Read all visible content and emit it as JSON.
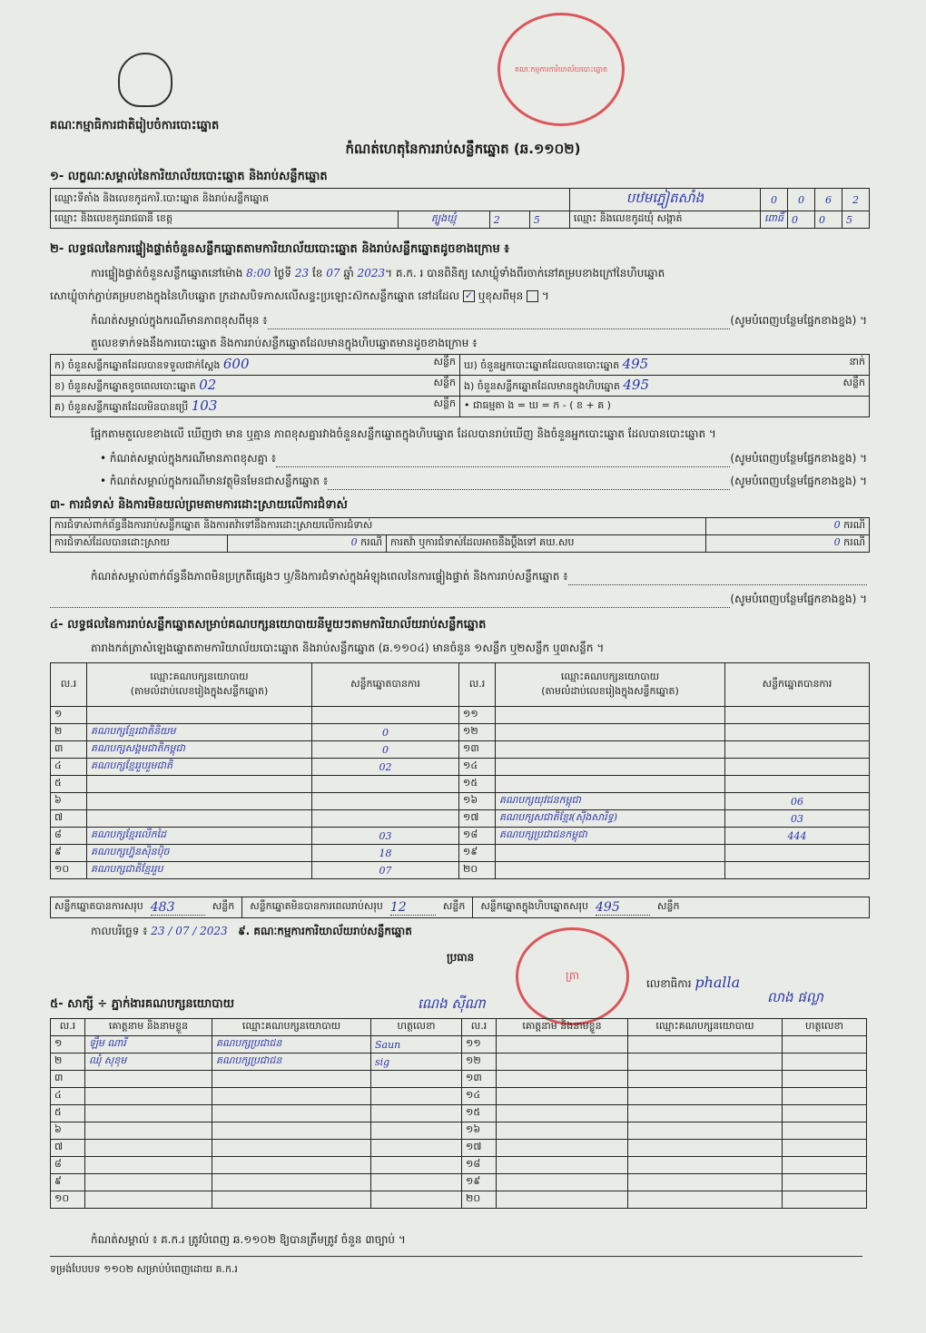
{
  "header": {
    "emblem": "royal-emblem",
    "committee": "គណៈកម្មាធិការជាតិរៀបចំការបោះឆ្នោត",
    "title": "កំណត់ហេតុនៃការរាប់សន្លឹកឆ្នោត (ឆ.១១០២)",
    "stamp_text": "គណៈកម្មការការិយាល័យបោះឆ្នោត"
  },
  "s1": {
    "heading": "១- លក្ខណៈសម្គាល់នៃការិយាល័យបោះឆ្នោត និងរាប់សន្លឹកឆ្នោត",
    "row1_label": "ឈ្មោះទីតាំង និងលេខកូដការិ.បោះឆ្នោត និងរាប់សន្លឹកឆ្នោត",
    "row1_value": "បឋមភ្នៀតសាំង",
    "row1_code": [
      "0",
      "0",
      "6",
      "2"
    ],
    "row2_label": "ឈ្មោះ និងលេខកូដរាជធានី ខេត្ត",
    "row2_value": "ត្បូងឃ្មុំ",
    "row2_code": [
      "2",
      "5"
    ],
    "row2_label2": "ឈ្មោះ និងលេខកូដឃុំ សង្កាត់",
    "row2_value2": "ពោធិ៍",
    "row2_code2": [
      "0",
      "0",
      "5"
    ]
  },
  "s2": {
    "heading": "២- លទ្ធផលនៃការផ្ទៀងផ្ទាត់ចំនួនសន្លឹកឆ្នោតតាមការិយាល័យបោះឆ្នោត និងរាប់សន្លឹកឆ្នោតដូចខាងក្រោម ៖",
    "p1a": "ការផ្ទៀងផ្ទាត់ចំនួនសន្លឹកឆ្នោតនៅម៉ោង",
    "time": "8:00",
    "p1b": "ថ្ងៃទី",
    "day": "23",
    "p1c": "ខែ",
    "month": "07",
    "p1d": "ឆ្នាំ",
    "year": "2023",
    "p1e": "។ គ.ក. រ បានពិនិត្យ សោឃ្លុំទាំងពីរចាក់នៅគម្របខាងក្រៅនៃហិបឆ្នោត",
    "p2": "សោឃ្លុំចាក់ភ្ជាប់គម្របខាងក្នុងនៃហិបឆ្នោត ក្រដាសបិទភាសលើសន្ទះប្រឡោះស៊កសន្លឹកឆ្នោត នៅដដែល",
    "p2_or": "ឬខុសពីមុន",
    "p3": "កំណត់សម្គាល់ក្នុងករណីមានភាពខុសពីមុន ៖",
    "fill_more": "(សូមបំពេញបន្ថែមផ្នែកខាងខ្នង) ។",
    "p4": "តួលេខទាក់ទងនឹងការបោះឆ្នោត និងការរាប់សន្លឹកឆ្នោតដែលមានក្នុងហិបឆ្នោតមានដូចខាងក្រោម ៖",
    "ka": "ក) ចំនួនសន្លឹកឆ្នោតដែលបានទទួលជាក់ស្តែង",
    "ka_v": "600",
    "kha": "ខ) ចំនួនសន្លឹកឆ្នោតខូចពេលបោះឆ្នោត",
    "kha_v": "02",
    "ko": "គ) ចំនួនសន្លឹកឆ្នោតដែលមិនបានប្រើ",
    "ko_v": "103",
    "kho": "ឃ) ចំនួនអ្នកបោះឆ្នោតដែលបានបោះឆ្នោត",
    "kho_v": "495",
    "ngo": "ង) ចំនួនសន្លឹកឆ្នោតដែលមានក្នុងហិបឆ្នោត",
    "ngo_v": "495",
    "formula": "• ជាធម្មតា ង = ឃ = ក - ( ខ + គ )",
    "unit_sheet": "សន្លឹក",
    "unit_person": "នាក់",
    "p5": "ផ្អែកតាមតួលេខខាងលើ ឃើញថា មាន ឬគ្មាន ភាពខុសគ្នារវាងចំនួនសន្លឹកឆ្នោតក្នុងហិបឆ្នោត ដែលបានរាប់ឃើញ និងចំនួនអ្នកបោះឆ្នោត ដែលបានបោះឆ្នោត ។",
    "b1": "• កំណត់សម្គាល់ក្នុងករណីមានភាពខុសគ្នា ៖",
    "b2": "• កំណត់សម្គាល់ក្នុងករណីមានវត្ថុមិនមែនជាសន្លឹកឆ្នោត ៖"
  },
  "s3": {
    "heading": "៣- ការជំទាស់ និងការមិនយល់ព្រមតាមការដោះស្រាយលើការជំទាស់",
    "r1": "ការជំទាស់ពាក់ព័ន្ធនឹងការរាប់សន្លឹកឆ្នោត និងការតវ៉ាទៅនឹងការដោះស្រាយលើការជំទាស់",
    "r1_v": "0",
    "case": "ករណី",
    "r2": "ការជំទាស់ដែលបានដោះស្រាយ",
    "r2_v": "0",
    "r3": "ការតវ៉ា ឬការជំទាស់ដែលអាចនឹងប្តឹងទៅ គឃ.សប",
    "r3_v": "0",
    "note": "កំណត់សម្គាល់ពាក់ព័ន្ធនឹងភាពមិនប្រក្រតីផ្សេងៗ ឬ/និងការជំទាស់ក្នុងអំឡុងពេលនៃការផ្ទៀងផ្ទាត់ និងការរាប់សន្លឹកឆ្នោត ៖"
  },
  "s4": {
    "heading": "៤- លទ្ធផលនៃការរាប់សន្លឹកឆ្នោតសម្រាប់គណបក្សនយោបាយនីមួយៗតាមការិយាល័យរាប់សន្លឹកឆ្នោត",
    "intro": "តារាងកត់ត្រាសំឡេងឆ្នោតតាមការិយាល័យបោះឆ្នោត និងរាប់សន្លឹកឆ្នោត (ឆ.១១០៤) មានចំនួន ១សន្លឹក ឬ២សន្លឹក ឬ៣សន្លឹក ។",
    "col_no": "ល.រ",
    "col_party": "ឈ្មោះគណបក្សនយោបាយ",
    "col_party2": "(តាមលំដាប់លេខរៀងក្នុងសន្លឹកឆ្នោត)",
    "col_votes": "សន្លឹកឆ្នោតបានការ",
    "rows_left": [
      {
        "n": "១",
        "p": "",
        "v": ""
      },
      {
        "n": "២",
        "p": "គណបក្សខ្មែរជាតិនិយម",
        "v": "0"
      },
      {
        "n": "៣",
        "p": "គណបក្សសង្គមជាតិកម្ពុជា",
        "v": "0"
      },
      {
        "n": "៤",
        "p": "គណបក្សខ្មែររួបរួមជាតិ",
        "v": "02"
      },
      {
        "n": "៥",
        "p": "",
        "v": ""
      },
      {
        "n": "៦",
        "p": "",
        "v": ""
      },
      {
        "n": "៧",
        "p": "",
        "v": ""
      },
      {
        "n": "៨",
        "p": "គណបក្សខ្មែរលើកដៃ",
        "v": "03"
      },
      {
        "n": "៩",
        "p": "គណបក្សហ្វ៊ុនស៊ិនប៉ិច",
        "v": "18"
      },
      {
        "n": "១០",
        "p": "គណបក្សជាតិខ្មែររួប",
        "v": "07"
      }
    ],
    "rows_right": [
      {
        "n": "១១",
        "p": "",
        "v": ""
      },
      {
        "n": "១២",
        "p": "",
        "v": ""
      },
      {
        "n": "១៣",
        "p": "",
        "v": ""
      },
      {
        "n": "១៤",
        "p": "",
        "v": ""
      },
      {
        "n": "១៥",
        "p": "",
        "v": ""
      },
      {
        "n": "១៦",
        "p": "គណបក្សយុវជនកម្ពុជា",
        "v": "06"
      },
      {
        "n": "១៧",
        "p": "គណបក្សសជាតិខ្មែរ(ស៊ីងសារិទ្ធ)",
        "v": "03"
      },
      {
        "n": "១៨",
        "p": "គណបក្សប្រជាជនកម្ពុជា",
        "v": "444"
      },
      {
        "n": "១៩",
        "p": "",
        "v": ""
      },
      {
        "n": "២០",
        "p": "",
        "v": ""
      }
    ],
    "tot1": "សន្លឹកឆ្នោតបានការសរុប",
    "tot1_v": "483",
    "tot2": "សន្លឹកឆ្នោតមិនបានការពេលរាប់សរុប",
    "tot2_v": "12",
    "tot3": "សន្លឹកឆ្នោតក្នុងហិបឆ្នោតសរុប",
    "tot3_v": "495",
    "date_label": "កាលបរិច្ឆេទ ៖",
    "date": "23 / 07 / 2023",
    "committee_label": "៩. គណៈកម្មការការិយាល័យរាប់សន្លឹកឆ្នោត",
    "president": "ប្រធាន",
    "president_name": "ណេង ស៊ីណា",
    "seal": "ត្រា",
    "secretary": "លេខាធិការ",
    "secretary_sig": "phalla",
    "secretary_name": "លាង ផល្លា"
  },
  "s5": {
    "heading": "៥- សាក្សី ÷ ភ្នាក់ងារគណបក្សនយោបាយ",
    "col_no": "ល.រ",
    "col_name": "គោត្តនាម និងនាមខ្លួន",
    "col_party": "ឈ្មោះគណបក្សនយោបាយ",
    "col_sig": "ហត្ថលេខា",
    "rows_left": [
      {
        "n": "១",
        "name": "ឡឹម ណារី",
        "party": "គណបក្សប្រជាជន",
        "sig": "Saun"
      },
      {
        "n": "២",
        "name": "ឈុំ សុខុម",
        "party": "គណបក្សប្រជាជន",
        "sig": "sig"
      },
      {
        "n": "៣"
      },
      {
        "n": "៤"
      },
      {
        "n": "៥"
      },
      {
        "n": "៦"
      },
      {
        "n": "៧"
      },
      {
        "n": "៨"
      },
      {
        "n": "៩"
      },
      {
        "n": "១០"
      }
    ],
    "rows_right": [
      "១១",
      "១២",
      "១៣",
      "១៤",
      "១៥",
      "១៦",
      "១៧",
      "១៨",
      "១៩",
      "២០"
    ],
    "footnote": "កំណត់សម្គាល់ ៖ គ.ក.រ ត្រូវបំពេញ ឆ.១១០២ ឱ្យបានត្រឹមត្រូវ ចំនួន ៣ច្បាប់ ។"
  },
  "footer": "ទម្រង់បែបបទ ១១០២ សម្រាប់បំពេញដោយ គ.ក.រ"
}
